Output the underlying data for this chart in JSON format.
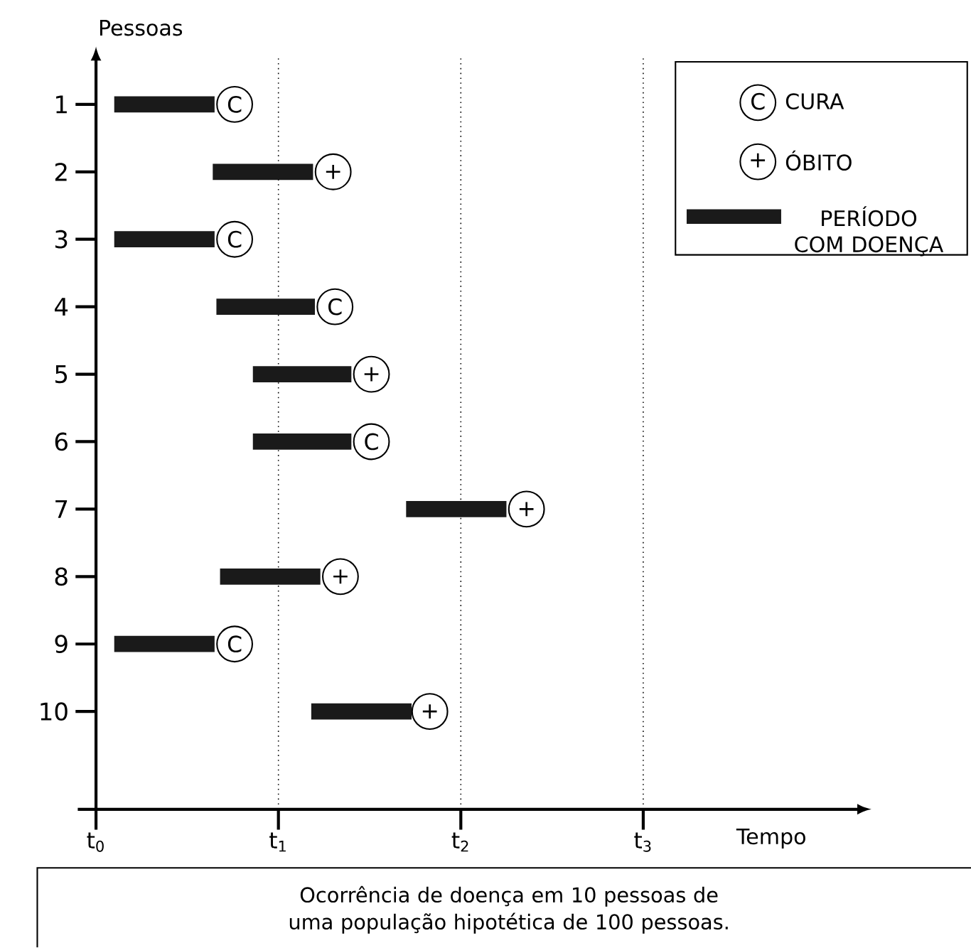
{
  "chart_data": {
    "type": "bar",
    "orientation": "horizontal",
    "xlabel": "Tempo",
    "ylabel": "Pessoas",
    "categories": [
      "1",
      "2",
      "3",
      "4",
      "5",
      "6",
      "7",
      "8",
      "9",
      "10"
    ],
    "xlim": [
      -0.1,
      4.2
    ],
    "xticks": [
      {
        "value": 0,
        "label": "t$_{0}$"
      },
      {
        "value": 1,
        "label": "t$_{1}$"
      },
      {
        "value": 2,
        "label": "t$_{2}$"
      },
      {
        "value": 3,
        "label": "t$_{3}$"
      }
    ],
    "series": [
      {
        "name": "CURA",
        "type": "scatter",
        "marker": "circle",
        "color": "#000000",
        "values": [
          0.76,
          null,
          0.76,
          1.31,
          null,
          1.51,
          null,
          null,
          0.76,
          null
        ],
        "value_labels": [
          "C",
          null,
          "C",
          "C",
          null,
          "C",
          null,
          null,
          "C",
          null
        ]
      },
      {
        "name": "ÓBITO",
        "type": "scatter",
        "marker": "circle",
        "color": "#000000",
        "values": [
          null,
          1.3,
          null,
          null,
          1.51,
          null,
          2.36,
          1.34,
          null,
          1.83
        ],
        "value_labels": [
          null,
          "+",
          null,
          null,
          "+",
          null,
          "+",
          "+",
          null,
          "+"
        ]
      },
      {
        "name": "PERÍODO COM DOENÇA",
        "type": "bar",
        "color": "#1a1a1a",
        "base": [
          0.1,
          0.64,
          0.1,
          0.66,
          0.86,
          0.86,
          1.7,
          0.68,
          0.1,
          1.18
        ],
        "values": [
          0.55,
          0.55,
          0.55,
          0.54,
          0.54,
          0.54,
          0.55,
          0.55,
          0.55,
          0.55
        ]
      }
    ],
    "ref_lines": [
      {
        "axis": "x",
        "value": 1,
        "line_style": "dotted"
      },
      {
        "axis": "x",
        "value": 2,
        "line_style": "dotted"
      },
      {
        "axis": "x",
        "value": 3,
        "line_style": "dotted"
      }
    ],
    "legend": "top right",
    "annotations": [
      "Ocorrência de doença em 10 pessoas de uma população hipotética de 100 pessoas."
    ]
  }
}
